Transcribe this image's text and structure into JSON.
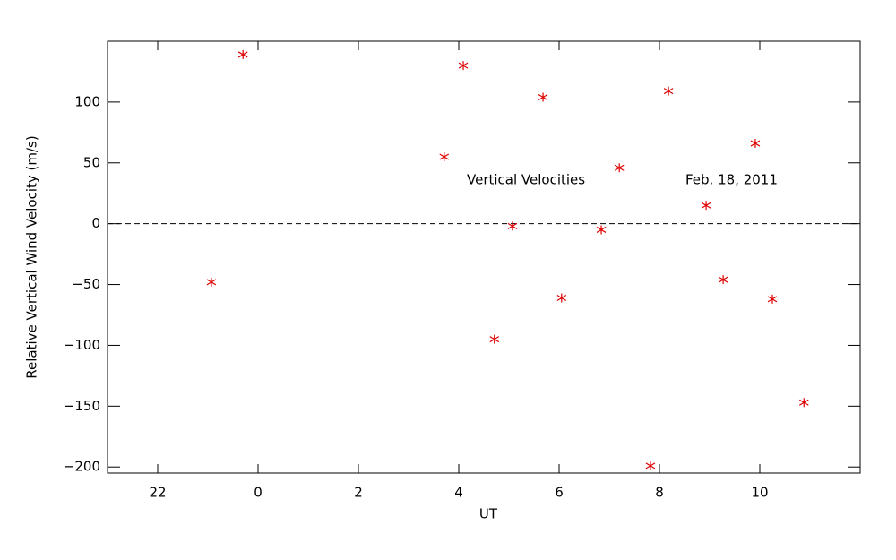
{
  "chart_data": {
    "type": "scatter",
    "xlabel": "UT",
    "ylabel": "Relative Vertical Wind Velocity (m/s)",
    "annotations": [
      "Vertical Velocities",
      "Feb. 18, 2011"
    ],
    "color": "#e00000",
    "xlim": [
      -3,
      12
    ],
    "ylim": [
      -205,
      150
    ],
    "xticks": [
      {
        "value": -2,
        "label": "22"
      },
      {
        "value": 0,
        "label": "0"
      },
      2,
      4,
      6,
      8,
      10
    ],
    "yticks": [
      {
        "value": -200,
        "label": "−200"
      },
      {
        "value": -150,
        "label": "−150"
      },
      {
        "value": -100,
        "label": "−100"
      },
      {
        "value": -50,
        "label": "−50"
      },
      0,
      50,
      100
    ],
    "reference_line": 0,
    "x": [
      -0.93,
      -0.3,
      3.71,
      4.09,
      4.71,
      5.07,
      5.68,
      6.05,
      6.84,
      7.2,
      7.82,
      8.18,
      8.93,
      9.27,
      9.91,
      10.25,
      10.88
    ],
    "values": [
      -48,
      139,
      55,
      130,
      -95,
      -2,
      104,
      -61,
      -5,
      46,
      -199,
      109,
      15,
      -46,
      66,
      -62,
      -147
    ]
  }
}
